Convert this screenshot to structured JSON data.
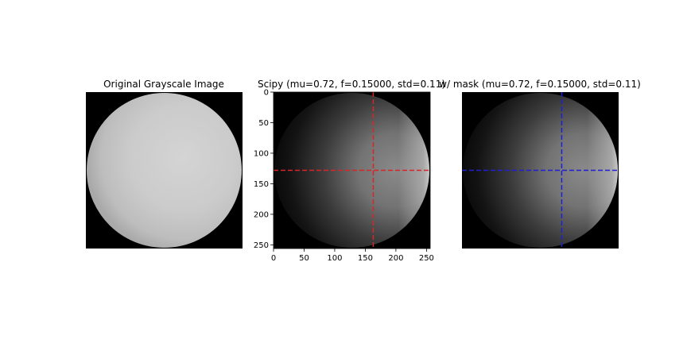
{
  "chart_data": [
    {
      "type": "image",
      "title": "Original Grayscale Image",
      "image_size": [
        256,
        256
      ],
      "axes_visible": false
    },
    {
      "type": "image",
      "title": "Scipy (mu=0.72, f=0.15000, std=0.11)",
      "image_size": [
        256,
        256
      ],
      "axes_visible": true,
      "xlim": [
        0,
        256
      ],
      "ylim": [
        256,
        0
      ],
      "xticks": [
        0,
        50,
        100,
        150,
        200,
        250
      ],
      "yticks": [
        0,
        50,
        100,
        150,
        200,
        250
      ],
      "crosshair": {
        "x": 163,
        "y": 128,
        "color": "#d62728",
        "style": "dashed"
      }
    },
    {
      "type": "image",
      "title": "w/ mask (mu=0.72, f=0.15000, std=0.11)",
      "image_size": [
        256,
        256
      ],
      "axes_visible": false,
      "crosshair": {
        "x": 163,
        "y": 128,
        "color": "#1f1fd6",
        "style": "dashed"
      }
    }
  ]
}
